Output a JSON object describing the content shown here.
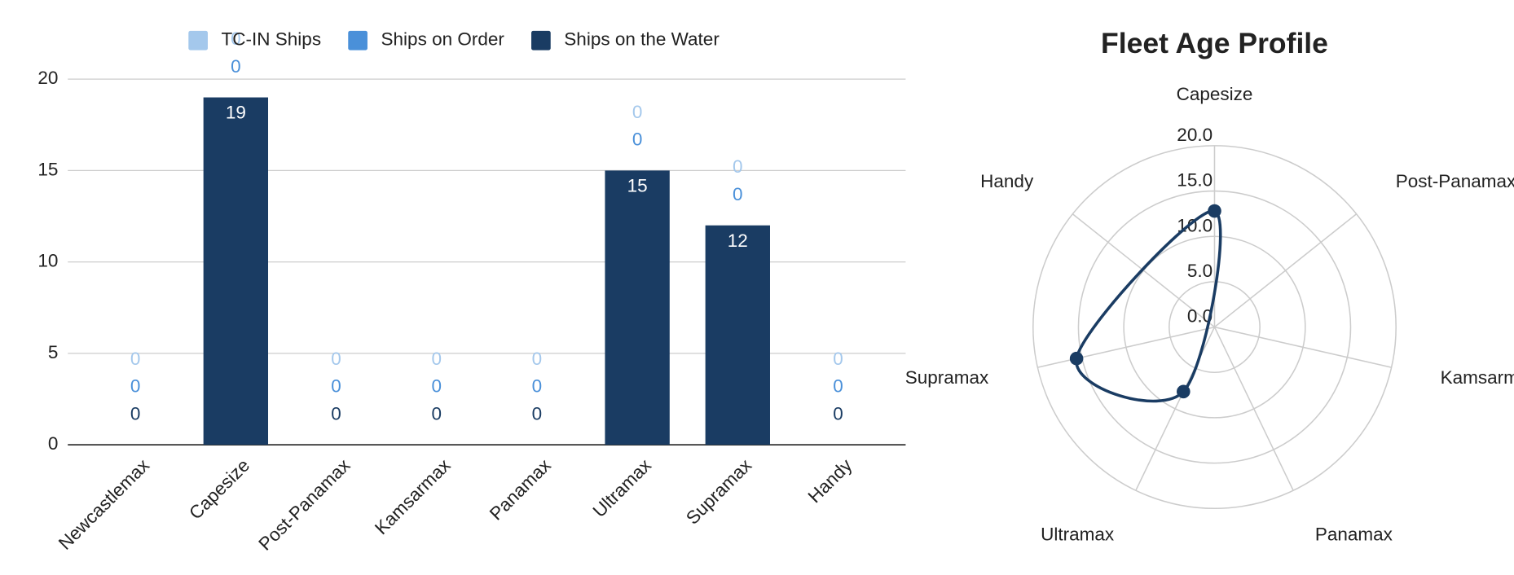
{
  "chart_data": [
    {
      "type": "bar",
      "stacked": true,
      "legend": "top",
      "categories": [
        "Newcastlemax",
        "Capesize",
        "Post-Panamax",
        "Kamsarmax",
        "Panamax",
        "Ultramax",
        "Supramax",
        "Handy"
      ],
      "series": [
        {
          "name": "Ships on the Water",
          "color": "#1a3c63",
          "values": [
            0,
            19,
            0,
            0,
            0,
            15,
            12,
            0
          ]
        },
        {
          "name": "Ships on Order",
          "color": "#4a90d9",
          "values": [
            0,
            0,
            0,
            0,
            0,
            0,
            0,
            0
          ]
        },
        {
          "name": "TC-IN Ships",
          "color": "#a4c8ec",
          "values": [
            0,
            0,
            0,
            0,
            0,
            0,
            0,
            0
          ]
        }
      ],
      "ylim": [
        0,
        20
      ],
      "yticks": [
        0,
        5,
        10,
        15,
        20
      ],
      "grid": true
    },
    {
      "type": "radar",
      "title": "Fleet Age Profile",
      "categories": [
        "Capesize",
        "Post-Panamax",
        "Kamsarmax",
        "Panamax",
        "Ultramax",
        "Supramax",
        "Handy"
      ],
      "values": [
        12.8,
        null,
        null,
        null,
        7.9,
        15.6,
        null
      ],
      "color": "#1a3c63",
      "rlim": [
        0,
        20
      ],
      "rticks": [
        {
          "value": 0,
          "label": "0.0"
        },
        {
          "value": 5,
          "label": "5.0"
        },
        {
          "value": 10,
          "label": "10.0"
        },
        {
          "value": 15,
          "label": "15.0"
        },
        {
          "value": 20,
          "label": "20.0"
        }
      ],
      "grid": true
    }
  ]
}
